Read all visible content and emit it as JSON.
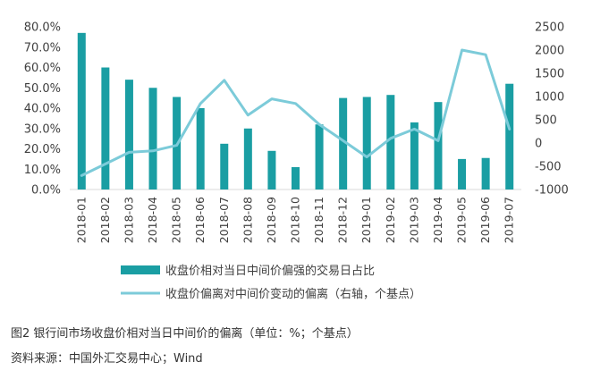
{
  "chart_data": {
    "type": "bar",
    "categories": [
      "2018-01",
      "2018-02",
      "2018-03",
      "2018-04",
      "2018-05",
      "2018-06",
      "2018-07",
      "2018-08",
      "2018-09",
      "2018-10",
      "2018-11",
      "2018-12",
      "2019-01",
      "2019-02",
      "2019-03",
      "2019-04",
      "2019-05",
      "2019-06",
      "2019-07"
    ],
    "series": [
      {
        "name": "收盘价相对当日中间价偏强的交易日占比",
        "type": "bar",
        "axis": "left",
        "color": "#1a9ea3",
        "values": [
          77.0,
          60.0,
          54.0,
          50.0,
          45.5,
          40.0,
          22.5,
          30.0,
          19.0,
          11.0,
          32.0,
          45.0,
          45.5,
          46.5,
          33.0,
          43.0,
          15.0,
          15.5,
          52.0
        ]
      },
      {
        "name": "收盘价偏离对中间价变动的偏离（右轴，个基点）",
        "type": "line",
        "axis": "right",
        "color": "#7ccbd9",
        "values": [
          -700,
          -450,
          -200,
          -170,
          -50,
          850,
          1350,
          600,
          950,
          850,
          400,
          50,
          -300,
          100,
          300,
          50,
          2000,
          1900,
          300
        ]
      }
    ],
    "ylim_left": [
      0,
      80
    ],
    "yticks_left": [
      "0.0%",
      "10.0%",
      "20.0%",
      "30.0%",
      "40.0%",
      "50.0%",
      "60.0%",
      "70.0%",
      "80.0%"
    ],
    "ylim_right": [
      -1000,
      2500
    ],
    "yticks_right": [
      "-1000",
      "-500",
      "0",
      "500",
      "1000",
      "1500",
      "2000",
      "2500"
    ],
    "grid": false,
    "legend_position": "bottom"
  },
  "caption": {
    "title": "图2  银行间市场收盘价相对当日中间价的偏离（单位：%；个基点）",
    "source": "资料来源：中国外汇交易中心；Wind"
  }
}
